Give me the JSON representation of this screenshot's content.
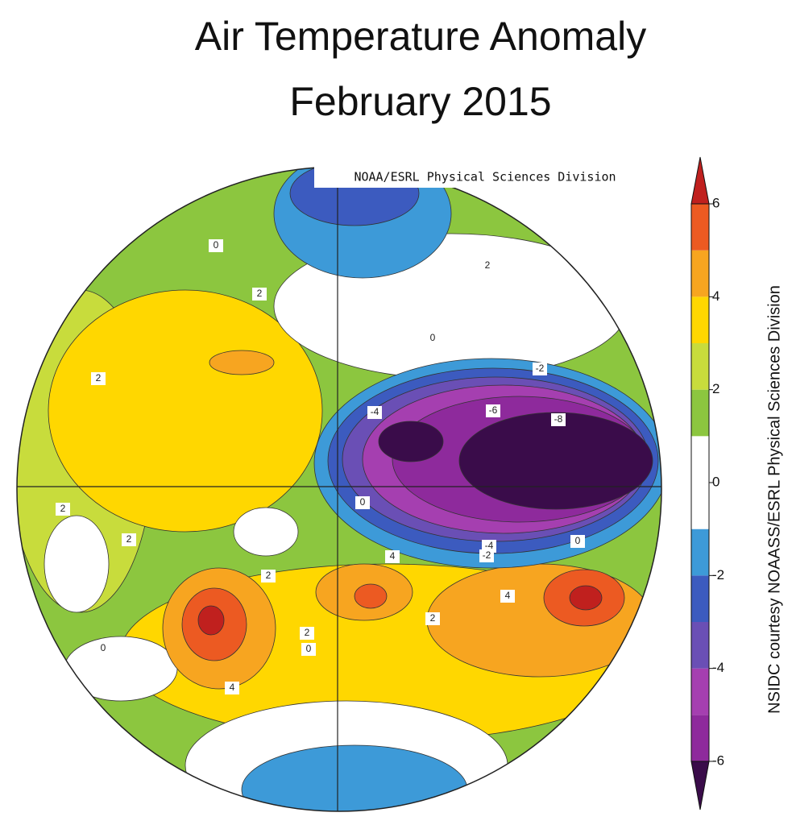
{
  "title": [
    "Air Temperature Anomaly",
    "February 2015"
  ],
  "credit": "NOAA/ESRL Physical Sciences Division",
  "side_label": "NSIDC courtesy NOAASS/ESRL Physical Sciences Division",
  "colorbar": {
    "ticks": [
      6,
      4,
      2,
      0,
      -2,
      -4,
      -6
    ],
    "bins": [
      -6,
      -5,
      -4,
      -3,
      -2,
      -1,
      0,
      1,
      2,
      3,
      4,
      5,
      6
    ],
    "colors": [
      "#8e2a9c",
      "#a53fb0",
      "#6a4fb5",
      "#3c5bbf",
      "#3d9ad8",
      "#ffffff",
      "#ffffff",
      "#8cc63f",
      "#c8dc3c",
      "#ffd700",
      "#f7a520",
      "#ec5a22"
    ],
    "under_color": "#3a0c4a",
    "over_color": "#c0201e"
  },
  "contour_labels": [
    2,
    2,
    2,
    2,
    2,
    2,
    0,
    0,
    -2,
    -4,
    -6,
    -8,
    -4,
    -2,
    0,
    4,
    4,
    2,
    2,
    0,
    0,
    4,
    0
  ]
}
